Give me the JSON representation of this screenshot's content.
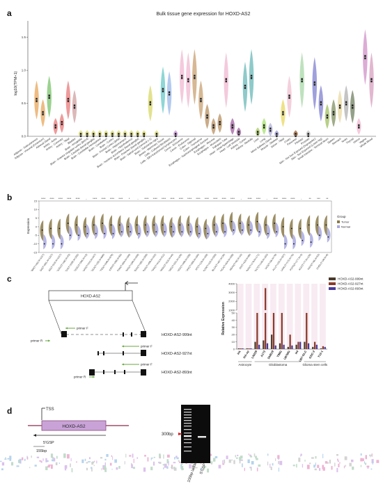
{
  "panel_a": {
    "label": "a",
    "title": "Bulk tissue gene expression for HOXD-AS2",
    "ylabel": "log10(TPM+1)",
    "yticks": [
      "0.0",
      "0.5",
      "1.0",
      "1.5"
    ],
    "tissues": [
      "Adipose - Subcutaneous",
      "Adipose - Visceral (Omentum)",
      "Adrenal Gland",
      "Artery - Aorta",
      "Artery - Coronary",
      "Artery - Tibial",
      "Bladder",
      "Brain - Amygdala",
      "Brain - Anterior cingulate cortex (BA24)",
      "Brain - Caudate (basal ganglia)",
      "Brain - Cerebellar Hemisphere",
      "Brain - Cerebellum",
      "Brain - Cortex",
      "Brain - Frontal Cortex (BA9)",
      "Brain - Hippocampus",
      "Brain - Hypothalamus",
      "Brain - Nucleus accumbens (basal ganglia)",
      "Brain - Putamen (basal ganglia)",
      "Brain - Spinal cord (cervical c-1)",
      "Brain - Substantia nigra",
      "Breast - Mammary Tissue",
      "Cells - Cultured fibroblasts",
      "Cells - EBV-transformed lymphocytes",
      "Cervix - Ectocervix",
      "Cervix - Endocervix",
      "Colon - Sigmoid",
      "Colon - Transverse",
      "Esophagus - Gastroesophageal Junction",
      "Esophagus - Mucosa",
      "Esophagus - Muscularis",
      "Fallopian Tube",
      "Heart - Atrial Appendage",
      "Heart - Left Ventricle",
      "Kidney - Cortex",
      "Kidney - Medulla",
      "Liver",
      "Lung",
      "Minor Salivary Gland",
      "Muscle - Skeletal",
      "Nerve - Tibial",
      "Ovary",
      "Pancreas",
      "Pituitary",
      "Prostate",
      "Skin - Not Sun Exposed (Suprapubic)",
      "Skin - Sun Exposed (Lower leg)",
      "Small Intestine - Terminal Ileum",
      "Spleen",
      "Stomach",
      "Testis",
      "Thyroid",
      "Uterus",
      "Vagina",
      "Whole Blood"
    ]
  },
  "chart_data": [
    {
      "type": "violin",
      "title": "Bulk tissue gene expression for HOXD-AS2",
      "ylabel": "log10(TPM+1)",
      "ylim": [
        0,
        1.75
      ],
      "categories": [
        "Adipose - Subcutaneous",
        "Adipose - Visceral (Omentum)",
        "Adrenal Gland",
        "Artery - Aorta",
        "Artery - Coronary",
        "Artery - Tibial",
        "Bladder",
        "Brain - Amygdala",
        "Brain - Anterior cingulate cortex (BA24)",
        "Brain - Caudate (basal ganglia)",
        "Brain - Cerebellar Hemisphere",
        "Brain - Cerebellum",
        "Brain - Cortex",
        "Brain - Frontal Cortex (BA9)",
        "Brain - Hippocampus",
        "Brain - Hypothalamus",
        "Brain - Nucleus accumbens (basal ganglia)",
        "Brain - Putamen (basal ganglia)",
        "Brain - Spinal cord (cervical c-1)",
        "Brain - Substantia nigra",
        "Breast - Mammary Tissue",
        "Cells - Cultured fibroblasts",
        "Cells - EBV-transformed lymphocytes",
        "Cervix - Ectocervix",
        "Cervix - Endocervix",
        "Colon - Sigmoid",
        "Colon - Transverse",
        "Esophagus - Gastroesophageal Junction",
        "Esophagus - Mucosa",
        "Esophagus - Muscularis",
        "Fallopian Tube",
        "Heart - Atrial Appendage",
        "Heart - Left Ventricle",
        "Kidney - Cortex",
        "Kidney - Medulla",
        "Liver",
        "Lung",
        "Minor Salivary Gland",
        "Muscle - Skeletal",
        "Nerve - Tibial",
        "Ovary",
        "Pancreas",
        "Pituitary",
        "Prostate",
        "Skin - Not Sun Exposed (Suprapubic)",
        "Skin - Sun Exposed (Lower leg)",
        "Small Intestine - Terminal Ileum",
        "Spleen",
        "Stomach",
        "Testis",
        "Thyroid",
        "Uterus",
        "Vagina",
        "Whole Blood"
      ],
      "medians": [
        0.55,
        0.35,
        0.6,
        0.15,
        0.2,
        0.55,
        0.45,
        0.02,
        0.02,
        0.02,
        0.02,
        0.02,
        0.02,
        0.02,
        0.02,
        0.02,
        0.02,
        0.02,
        0.5,
        0.02,
        0.7,
        0.65,
        0.02,
        0.9,
        0.85,
        0.9,
        0.55,
        0.3,
        0.15,
        0.2,
        0.85,
        0.15,
        0.05,
        0.75,
        0.9,
        0.05,
        0.15,
        0.1,
        0.02,
        0.35,
        0.6,
        0.02,
        0.85,
        0.02,
        0.8,
        0.5,
        0.3,
        0.35,
        0.45,
        0.5,
        0.45,
        0.15,
        1.2,
        0.85
      ],
      "colors": [
        "#e8a55a",
        "#e8a55a",
        "#7ac36a",
        "#e87a7a",
        "#e87a7a",
        "#e87a7a",
        "#d0a0a0",
        "#d8d86a",
        "#d8d86a",
        "#d8d86a",
        "#d8d86a",
        "#d8d86a",
        "#d8d86a",
        "#d8d86a",
        "#d8d86a",
        "#d8d86a",
        "#d8d86a",
        "#d8d86a",
        "#d8d86a",
        "#d8d86a",
        "#6ac8c8",
        "#9ab8e8",
        "#c890d8",
        "#f0b8d0",
        "#f0b8d0",
        "#c8a070",
        "#c8a070",
        "#b89060",
        "#b89060",
        "#b89060",
        "#f0b8d0",
        "#a060a0",
        "#a060a0",
        "#6ab8b8",
        "#6ab8b8",
        "#a8c860",
        "#a8e070",
        "#b0b0d8",
        "#9898d8",
        "#e8d860",
        "#f0c0d0",
        "#a06030",
        "#a8d8a8",
        "#c0c0c0",
        "#8080d0",
        "#8080d0",
        "#a0c060",
        "#809060",
        "#e8d8a0",
        "#b0b0b0",
        "#708060",
        "#f0b8d0",
        "#d090c8",
        "#d8a0c0"
      ]
    },
    {
      "type": "split-violin",
      "ylabel": "Expression",
      "ylim": [
        -15,
        15
      ],
      "legend": {
        "title": "Group",
        "items": [
          "Tumor",
          "Normal"
        ],
        "colors": [
          "#8b7a4a",
          "#a8a8e0"
        ],
        "placement": "right"
      },
      "categories": [
        "GBM(T=163,N=1157)",
        "GBMLGG(T=681,N=1157)",
        "LGG(T=518,N=1157)",
        "UCEC(T=180,N=23)",
        "BRCA(T=1092,N=292)",
        "CESC(T=306,N=13)",
        "LUAD(T=515,N=347)",
        "ESCA(T=182,N=668)",
        "STES(T=596,N=879)",
        "KIRP(T=288,N=60)",
        "KIPAN(T=884,N=168)",
        "COAD(T=290,N=349)",
        "COADREAD(T=382,N=359)",
        "PRAD(T=496,N=152)",
        "STAD(T=414,N=211)",
        "HNSC(T=518,N=44)",
        "KIRC(T=531,N=100)",
        "LUSC(T=498,N=338)",
        "LIHC(T=369,N=160)",
        "WT(T=120,N=168)",
        "SKCM(T=102,N=558)",
        "BLCA(T=407,N=28)",
        "THCA(T=504,N=338)",
        "READ(T=92,N=10)",
        "OV(T=419,N=88)",
        "PAAD(T=178,N=171)",
        "TGCT(T=148,N=165)",
        "UCS(T=56,N=78)",
        "ALL(T=132,N=337)",
        "LAML(T=173,N=70)",
        "PCPG(T=177,N=3)",
        "ACC(T=77,N=128)",
        "KICH(T=66,N=53)",
        "CHOL(T=36,N=9)"
      ],
      "significance": [
        "****",
        "****",
        "****",
        "****",
        "****",
        "-",
        "****",
        "****",
        "****",
        "****",
        "*",
        "-",
        "****",
        "****",
        "****",
        "****",
        "****",
        "****",
        "****",
        "****",
        "****",
        "****",
        "****",
        "-",
        "****",
        "****",
        "-",
        "****",
        "****",
        "****",
        "-",
        "**",
        "***",
        "**"
      ],
      "tumor_medians": [
        -2,
        -1,
        -1,
        2,
        1,
        0,
        1,
        2,
        1,
        1,
        0,
        1,
        1,
        1,
        1,
        0,
        1,
        1,
        0,
        -1,
        1,
        2,
        3,
        2,
        1,
        3,
        1,
        2,
        0,
        -1,
        -1,
        1,
        1,
        1
      ],
      "normal_medians": [
        -10,
        -10,
        -10,
        -5,
        -5,
        -4,
        -4,
        -4,
        -4,
        -3,
        -3,
        -4,
        -3,
        -3,
        -3,
        -3,
        -3,
        -3,
        -4,
        -4,
        -3,
        -3,
        -2,
        -2,
        -2,
        -3,
        -4,
        -3,
        -10,
        -10,
        -8,
        -9,
        -5,
        -6
      ]
    },
    {
      "type": "bar",
      "ylabel": "Relative Expression",
      "legend": {
        "items": [
          "HOXD-AS2-999nt",
          "HOXD-AS2-927nt",
          "HOXD-AS2-893nt"
        ],
        "colors": [
          "#4a3a2a",
          "#8b3a2a",
          "#4a3a9a"
        ],
        "placement": "top-right"
      },
      "categories": [
        "HA",
        "HA-sp",
        "LN229",
        "A172",
        "SNB19",
        "T98G",
        "U87MG",
        "H4",
        "U87-GLC",
        "GSC-2",
        "T12-1"
      ],
      "groups": [
        "Astrocyte",
        "Glioblastoma",
        "Glioma stem cells"
      ],
      "series": [
        {
          "name": "HOXD-AS2-999nt",
          "values": [
            1,
            1,
            10,
            12,
            20,
            8,
            3,
            6,
            10,
            3,
            1
          ]
        },
        {
          "name": "HOXD-AS2-927nt",
          "values": [
            1,
            1,
            800,
            3500,
            700,
            700,
            20,
            10,
            500,
            10,
            4
          ]
        },
        {
          "name": "HOXD-AS2-893nt",
          "values": [
            1,
            1,
            6,
            8,
            5,
            6,
            5,
            10,
            8,
            6,
            3
          ]
        }
      ],
      "yticks": [
        "4000",
        "3000",
        "2000",
        "1000",
        "50",
        "40",
        "30",
        "20",
        "10",
        "0"
      ]
    }
  ],
  "panel_b": {
    "label": "b",
    "ylabel": "Expression",
    "yticks": [
      "15",
      "10",
      "5",
      "0",
      "-5",
      "-10",
      "-15"
    ],
    "legend_title": "Group",
    "legend_items": [
      "Tumor",
      "Normal"
    ]
  },
  "panel_c": {
    "label": "c",
    "gene_box": "HOXD-AS2",
    "isoforms": [
      "HOXD-AS2-999nt",
      "HOXD-AS2-927nt",
      "HOXD-AS2-893nt"
    ],
    "primer_f": "primer F",
    "primer_r": "primer R",
    "chart_ylabel": "Relative Expression",
    "cell_lines": [
      "HA",
      "HA-sp",
      "LN229",
      "A172",
      "SNB19",
      "T98G",
      "U87MG",
      "H4",
      "U87-GLC",
      "GSC-2",
      "T12-1"
    ],
    "groups": [
      "Astrocyte",
      "Glioblastoma",
      "Glioma stem cells"
    ]
  },
  "panel_d": {
    "label": "d",
    "tss": "TSS",
    "gene_box": "HOXD-AS2",
    "gsp": "5'GSP",
    "length": "155bp",
    "marker": "300bp",
    "lanes": [
      "100bp ladder",
      "5'GSP"
    ]
  }
}
